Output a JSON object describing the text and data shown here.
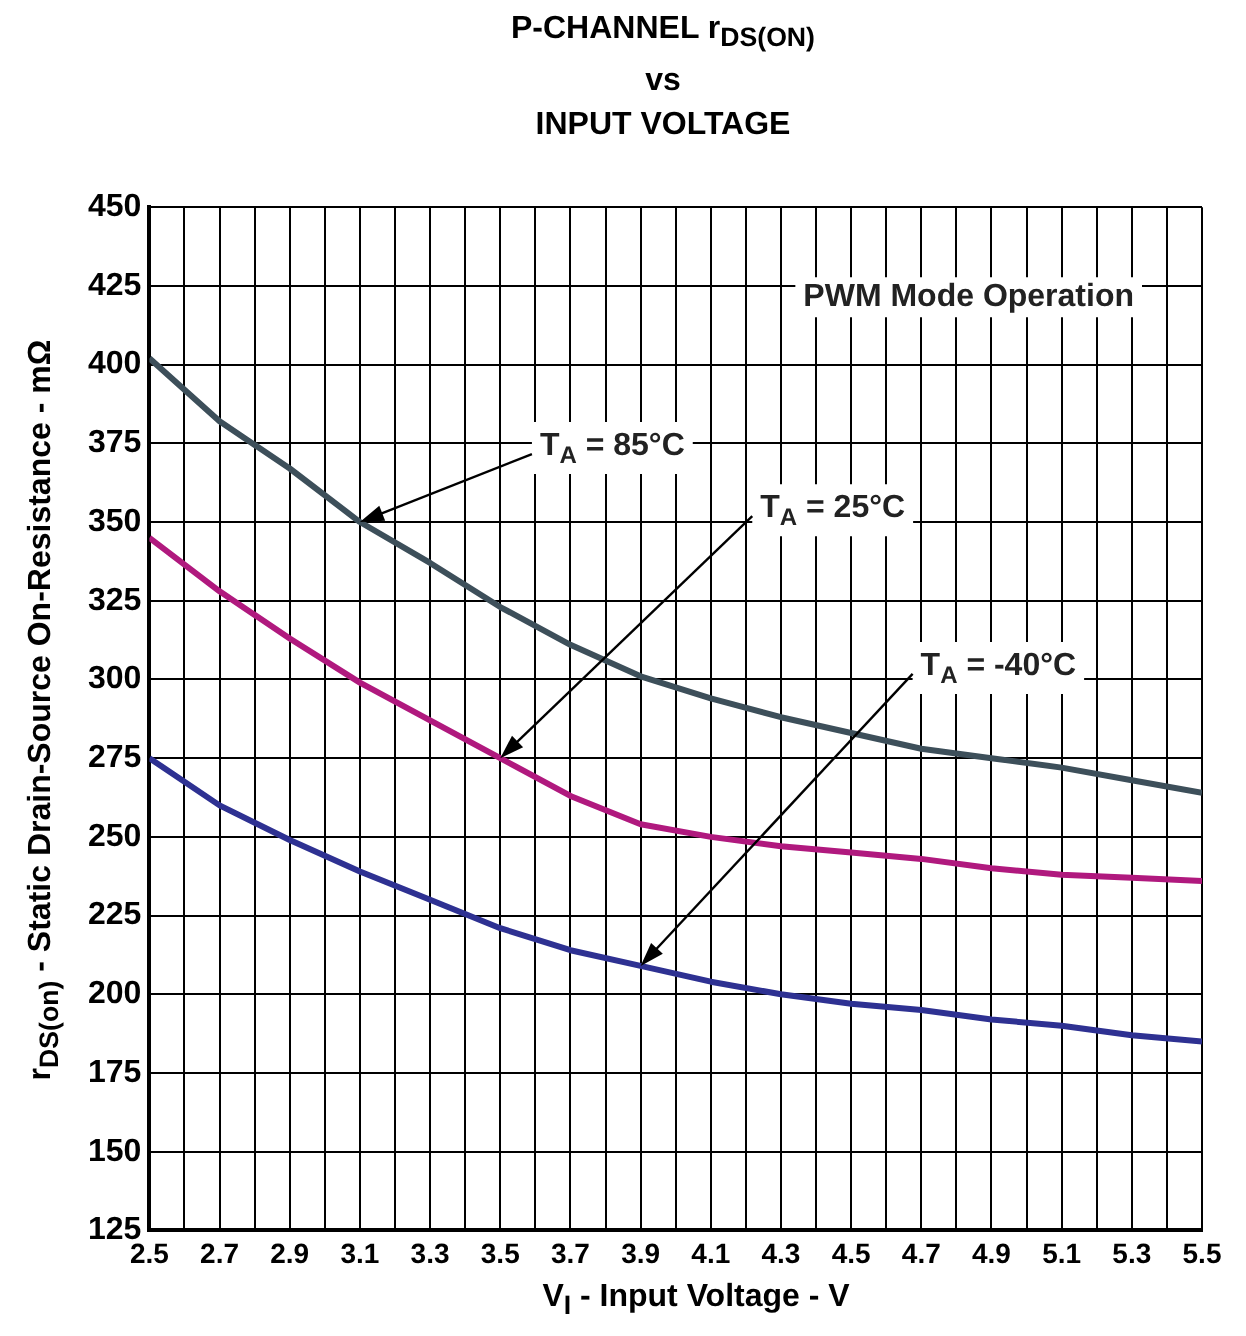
{
  "chart_data": {
    "type": "line",
    "title": "P-CHANNEL r$_{DS(ON)}$\nvs\nINPUT VOLTAGE",
    "xlabel": "V$_{I}$ - Input Voltage - V",
    "ylabel": "r$_{DS(on)}$ - Static Drain-Source On-Resistance - mΩ",
    "x": [
      2.5,
      2.7,
      2.9,
      3.1,
      3.3,
      3.5,
      3.7,
      3.9,
      4.1,
      4.3,
      4.5,
      4.7,
      4.9,
      5.1,
      5.3,
      5.5
    ],
    "series": [
      {
        "color": "#3d4f5a",
        "values": [
          402,
          382,
          367,
          350,
          337,
          323,
          311,
          301,
          294,
          288,
          283,
          278,
          275,
          272,
          268,
          264
        ]
      },
      {
        "color": "#b0197e",
        "values": [
          345,
          328,
          313,
          299,
          287,
          275,
          263,
          254,
          250,
          247,
          245,
          243,
          240,
          238,
          237,
          236
        ]
      },
      {
        "color": "#2e3192",
        "values": [
          275,
          260,
          249,
          239,
          230,
          221,
          214,
          209,
          204,
          200,
          197,
          195,
          192,
          190,
          187,
          185
        ]
      }
    ],
    "xlim": [
      2.5,
      5.5
    ],
    "xticks": [
      2.5,
      {
        "value": 2.6,
        "label": null
      },
      2.7,
      {
        "value": 2.8,
        "label": null
      },
      2.9,
      {
        "value": 3.0,
        "label": null
      },
      3.1,
      {
        "value": 3.2,
        "label": null
      },
      3.3,
      {
        "value": 3.4,
        "label": null
      },
      3.5,
      {
        "value": 3.6,
        "label": null
      },
      3.7,
      {
        "value": 3.8,
        "label": null
      },
      3.9,
      {
        "value": 4.0,
        "label": null
      },
      4.1,
      {
        "value": 4.2,
        "label": null
      },
      4.3,
      {
        "value": 4.4,
        "label": null
      },
      4.5,
      {
        "value": 4.6,
        "label": null
      },
      4.7,
      {
        "value": 4.8,
        "label": null
      },
      4.9,
      {
        "value": 5.0,
        "label": null
      },
      5.1,
      {
        "value": 5.2,
        "label": null
      },
      5.3,
      {
        "value": 5.4,
        "label": null
      },
      5.5
    ],
    "ylim": [
      125,
      450
    ],
    "yticks": [
      125,
      150,
      175,
      200,
      225,
      250,
      275,
      300,
      325,
      350,
      375,
      400,
      425,
      450
    ],
    "grid": true,
    "legend": false,
    "marker": "none",
    "line_style": "solid",
    "annotations": [
      "PWM Mode Operation",
      {
        "text": "T$_{A}$ = 85°C",
        "x": 3.1,
        "y": 350
      },
      {
        "text": "T$_{A}$ = 25°C",
        "x": 3.5,
        "y": 275
      },
      {
        "text": "T$_{A}$ = -40°C",
        "x": 3.9,
        "y": 209
      }
    ]
  }
}
